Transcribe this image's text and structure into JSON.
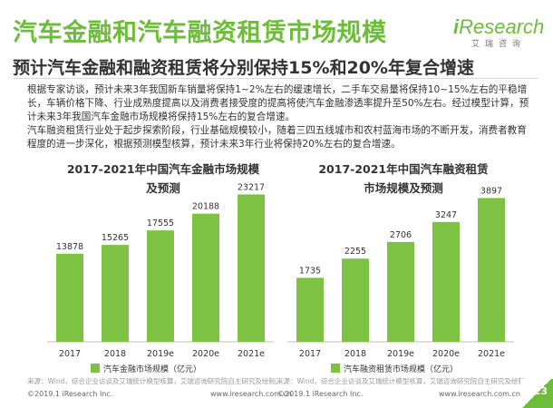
{
  "header": {
    "title": "汽车金融和汽车融资租赁市场规模",
    "subtitle": "预计汽车金融和融资租赁将分别保持15%和20%年复合增速"
  },
  "logo": {
    "main_i": "i",
    "main": "Research",
    "sub": "艾瑞咨询"
  },
  "paragraphs": [
    "根据专家访谈，预计未来3年我国新车销量将保持1~2%左右的缓速增长，二手车交易量将保持10~15%左右的平稳增长，车辆价格下降、行业成熟度提高以及消费者接受度的提高将使汽车金融渗透率提升至50%左右。经过模型计算，预计未来3年我国汽车金融市场规模将保持15%左右的复合增速。",
    "汽车融资租赁行业处于起步探索阶段，行业基础规模较小，随着三四五线城市和农村蓝海市场的不断开发，消费者教育程度的进一步深化，根据预测模型核算，预计未来3年行业将保持20%左右的复合增速。"
  ],
  "colors": {
    "accent": "#6dbd3a",
    "bar": "#7dc242",
    "text": "#333333"
  },
  "chart_data": [
    {
      "type": "bar",
      "title_lines": [
        "2017-2021年中国汽车金融市场规模",
        "及预测"
      ],
      "categories": [
        "2017",
        "2018",
        "2019e",
        "2020e",
        "2021e"
      ],
      "series": [
        {
          "name": "汽车金融市场规模（亿元）",
          "values": [
            13878,
            15265,
            17555,
            20188,
            23217
          ]
        }
      ],
      "ylim": [
        0,
        25000
      ],
      "grid": false,
      "legend": "bottom"
    },
    {
      "type": "bar",
      "title_lines": [
        "2017-2021年中国汽车融资租赁",
        "市场规模及预测"
      ],
      "categories": [
        "2017",
        "2018",
        "2019e",
        "2020e",
        "2021e"
      ],
      "series": [
        {
          "name": "汽车融资租赁市场规模（亿元）",
          "values": [
            1735,
            2255,
            2706,
            3247,
            3897
          ]
        }
      ],
      "ylim": [
        0,
        4300
      ],
      "grid": false,
      "legend": "bottom"
    }
  ],
  "sources": [
    "来源：Wind，综合企业访谈及艾瑞统计模型核算，艾瑞咨询研究院自主研究及绘制。",
    "来源：Wind，综合企业访谈及艾瑞统计模型核算，艾瑞咨询研究院自主研究及绘制。"
  ],
  "footer": {
    "copyright_left": "©2019.1 iResearch Inc.",
    "website_left": "www.iresearch.com.cn",
    "copyright_right": "©2019.1 iResearch Inc.",
    "website_right": "www.iresearch.com.cn",
    "page": "23"
  }
}
